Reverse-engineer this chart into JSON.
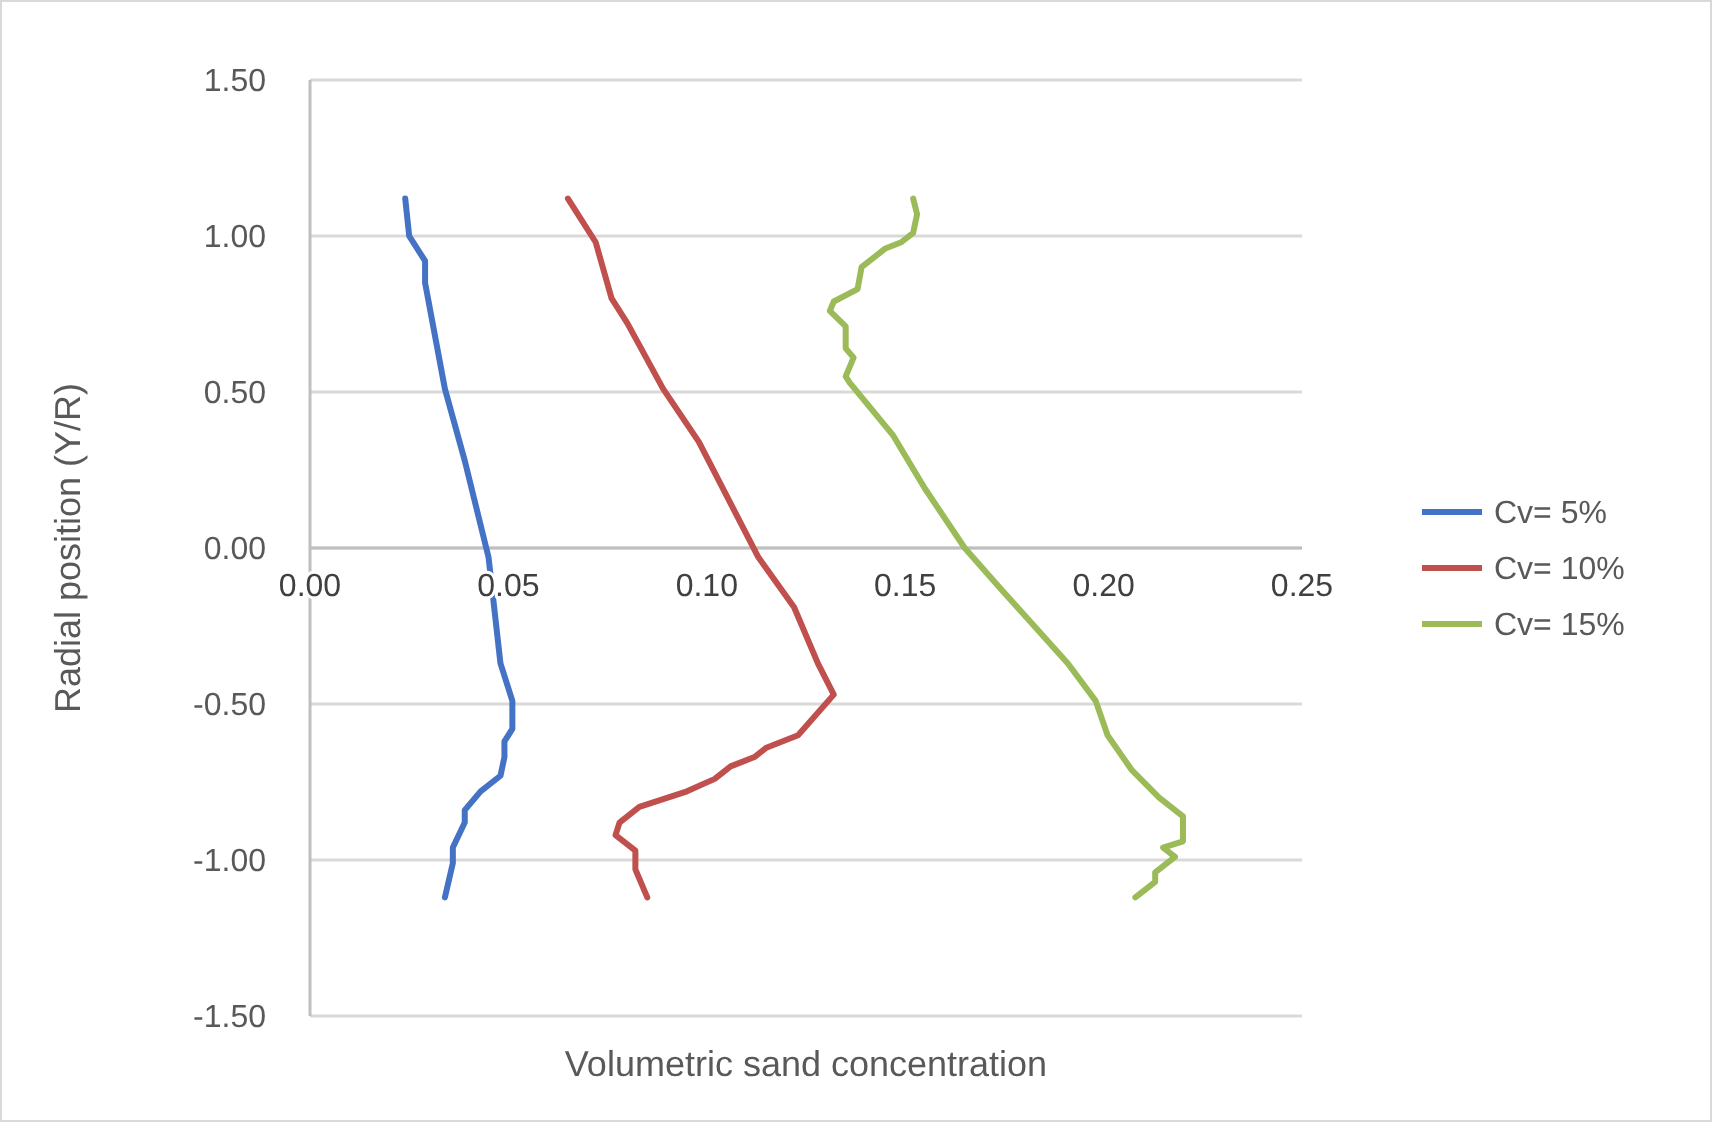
{
  "chart_data": {
    "type": "line",
    "xlabel": "Volumetric sand concentration",
    "ylabel": "Radial position (Y/R)",
    "xlim": [
      0,
      0.25
    ],
    "xticks": [
      {
        "value": 0,
        "label": "0.00"
      },
      {
        "value": 0.05,
        "label": "0.05"
      },
      {
        "value": 0.1,
        "label": "0.10"
      },
      {
        "value": 0.15,
        "label": "0.15"
      },
      {
        "value": 0.2,
        "label": "0.20"
      },
      {
        "value": 0.25,
        "label": "0.25"
      }
    ],
    "ylim": [
      -1.5,
      1.5
    ],
    "yticks": [
      {
        "value": -1.5,
        "label": "-1.50"
      },
      {
        "value": -1,
        "label": "-1.00"
      },
      {
        "value": -0.5,
        "label": "-0.50"
      },
      {
        "value": 0,
        "label": "0.00"
      },
      {
        "value": 0.5,
        "label": "0.50"
      },
      {
        "value": 1,
        "label": "1.00"
      },
      {
        "value": 1.5,
        "label": "1.50"
      }
    ],
    "grid": "y",
    "legend": "right",
    "marker": "none",
    "line_style": "solid",
    "series": [
      {
        "name": "Cv= 5%",
        "color": "#4472c4",
        "x": [
          0.024,
          0.025,
          0.029,
          0.029,
          0.034,
          0.039,
          0.045,
          0.048,
          0.051,
          0.051,
          0.049,
          0.049,
          0.048,
          0.043,
          0.039,
          0.039,
          0.036,
          0.036,
          0.034
        ],
        "values": [
          1.12,
          1.0,
          0.92,
          0.85,
          0.51,
          0.28,
          -0.03,
          -0.37,
          -0.49,
          -0.58,
          -0.62,
          -0.67,
          -0.73,
          -0.78,
          -0.84,
          -0.88,
          -0.96,
          -1.01,
          -1.12
        ]
      },
      {
        "name": "Cv= 10%",
        "color": "#c0504d",
        "x": [
          0.065,
          0.072,
          0.076,
          0.08,
          0.089,
          0.098,
          0.113,
          0.122,
          0.128,
          0.132,
          0.123,
          0.115,
          0.112,
          0.106,
          0.102,
          0.095,
          0.083,
          0.078,
          0.077,
          0.082,
          0.082,
          0.085
        ],
        "values": [
          1.12,
          0.98,
          0.8,
          0.72,
          0.51,
          0.34,
          -0.03,
          -0.19,
          -0.37,
          -0.47,
          -0.6,
          -0.64,
          -0.67,
          -0.7,
          -0.74,
          -0.78,
          -0.83,
          -0.88,
          -0.92,
          -0.97,
          -1.03,
          -1.12
        ]
      },
      {
        "name": "Cv= 15%",
        "color": "#9bbb59",
        "x": [
          0.152,
          0.153,
          0.152,
          0.149,
          0.145,
          0.139,
          0.138,
          0.132,
          0.131,
          0.135,
          0.135,
          0.137,
          0.135,
          0.136,
          0.147,
          0.155,
          0.165,
          0.174,
          0.191,
          0.198,
          0.201,
          0.207,
          0.214,
          0.22,
          0.22,
          0.215,
          0.218,
          0.213,
          0.213,
          0.208
        ],
        "values": [
          1.12,
          1.07,
          1.01,
          0.98,
          0.96,
          0.9,
          0.83,
          0.79,
          0.76,
          0.71,
          0.64,
          0.61,
          0.55,
          0.53,
          0.36,
          0.19,
          0.0,
          -0.13,
          -0.37,
          -0.49,
          -0.6,
          -0.71,
          -0.8,
          -0.86,
          -0.94,
          -0.96,
          -0.99,
          -1.04,
          -1.07,
          -1.12
        ]
      }
    ]
  }
}
